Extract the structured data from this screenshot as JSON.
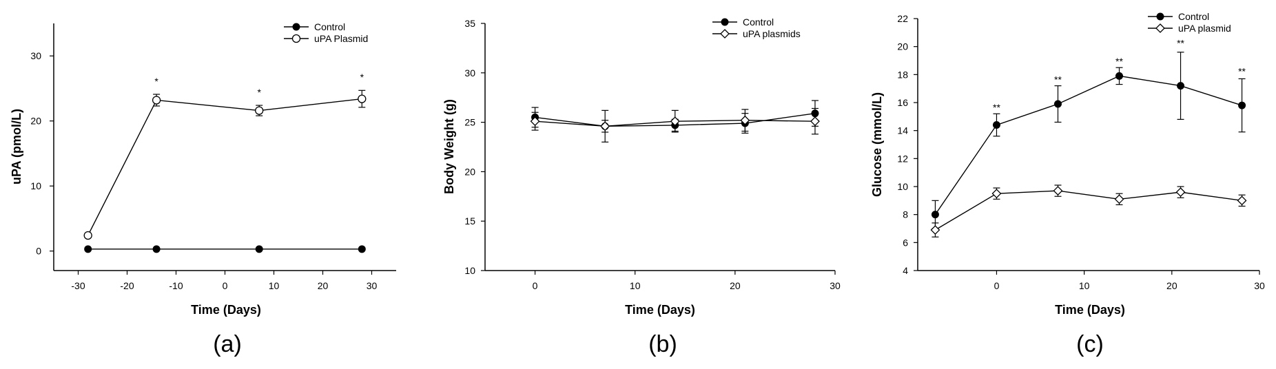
{
  "chart_data": [
    {
      "type": "line",
      "panel_label": "(a)",
      "title": "",
      "xlabel": "Time (Days)",
      "ylabel": "uPA (pmol/L)",
      "xlim": [
        -35,
        35
      ],
      "ylim": [
        -3,
        35
      ],
      "xticks": [
        -30,
        -20,
        -10,
        0,
        10,
        20,
        30
      ],
      "yticks": [
        0,
        10,
        20,
        30
      ],
      "legend_position": "top-right",
      "series": [
        {
          "name": "Control",
          "marker": "filled-circle",
          "x": [
            -28,
            -14,
            7,
            28
          ],
          "y": [
            0.3,
            0.3,
            0.3,
            0.3
          ],
          "err": [
            0,
            0,
            0,
            0
          ]
        },
        {
          "name": "uPA Plasmid",
          "marker": "open-circle",
          "x": [
            -28,
            -14,
            7,
            28
          ],
          "y": [
            2.4,
            23.2,
            21.6,
            23.4
          ],
          "err": [
            0,
            0.9,
            0.8,
            1.3
          ]
        }
      ],
      "annotations": [
        {
          "x": -14,
          "y": 25.6,
          "text": "*"
        },
        {
          "x": 7,
          "y": 23.9,
          "text": "*"
        },
        {
          "x": 28,
          "y": 26.2,
          "text": "*"
        }
      ]
    },
    {
      "type": "line",
      "panel_label": "(b)",
      "title": "",
      "xlabel": "Time (Days)",
      "ylabel": "Body Weight (g)",
      "xlim": [
        -5,
        30
      ],
      "ylim": [
        10,
        35
      ],
      "xticks": [
        0,
        10,
        20,
        30
      ],
      "yticks": [
        10,
        15,
        20,
        25,
        30,
        35
      ],
      "legend_position": "top-right",
      "series": [
        {
          "name": "Control",
          "marker": "filled-circle",
          "x": [
            0,
            7,
            14,
            21,
            28
          ],
          "y": [
            25.5,
            24.6,
            24.7,
            24.9,
            25.9
          ],
          "err": [
            1.0,
            0.6,
            0.6,
            1.0,
            1.3
          ]
        },
        {
          "name": "uPA plasmids",
          "marker": "open-diamond",
          "x": [
            0,
            7,
            14,
            21,
            28
          ],
          "y": [
            25.1,
            24.6,
            25.1,
            25.2,
            25.1
          ],
          "err": [
            0.9,
            1.6,
            1.1,
            1.1,
            1.3
          ]
        }
      ],
      "annotations": []
    },
    {
      "type": "line",
      "panel_label": "(c)",
      "title": "",
      "xlabel": "Time (Days)",
      "ylabel": "Glucose (mmol/L)",
      "xlim": [
        -9,
        30
      ],
      "ylim": [
        4,
        22
      ],
      "xticks": [
        0,
        10,
        20,
        30
      ],
      "yticks": [
        4,
        6,
        8,
        10,
        12,
        14,
        16,
        18,
        20,
        22
      ],
      "legend_position": "top-right",
      "series": [
        {
          "name": "Control",
          "marker": "filled-circle",
          "x": [
            -7,
            0,
            7,
            14,
            21,
            28
          ],
          "y": [
            8.0,
            14.4,
            15.9,
            17.9,
            17.2,
            15.8
          ],
          "err": [
            1.0,
            0.8,
            1.3,
            0.6,
            2.4,
            1.9
          ]
        },
        {
          "name": "uPA plasmid",
          "marker": "open-diamond",
          "x": [
            -7,
            0,
            7,
            14,
            21,
            28
          ],
          "y": [
            6.9,
            9.5,
            9.7,
            9.1,
            9.6,
            9.0
          ],
          "err": [
            0.5,
            0.4,
            0.4,
            0.4,
            0.4,
            0.4
          ]
        }
      ],
      "annotations": [
        {
          "x": 0,
          "y": 15.4,
          "text": "**"
        },
        {
          "x": 7,
          "y": 17.4,
          "text": "**"
        },
        {
          "x": 14,
          "y": 18.7,
          "text": "**"
        },
        {
          "x": 21,
          "y": 20.0,
          "text": "**"
        },
        {
          "x": 28,
          "y": 18.0,
          "text": "**"
        }
      ]
    }
  ]
}
